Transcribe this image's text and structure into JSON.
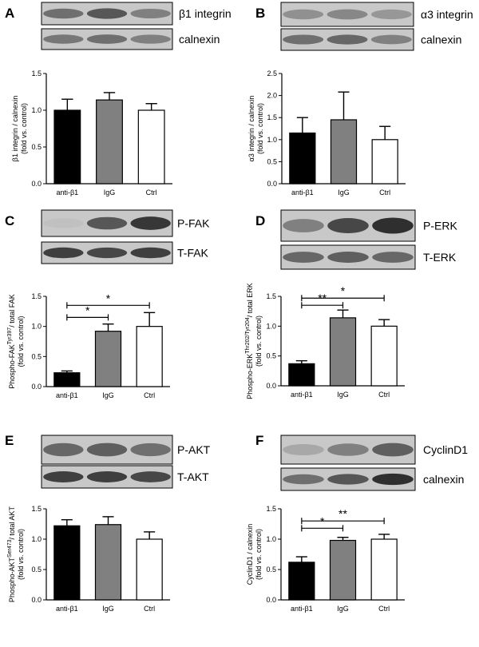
{
  "chart_data": [
    {
      "panel": "A",
      "type": "bar",
      "blots": [
        {
          "label": "β1 integrin",
          "intensity": [
            0.55,
            0.7,
            0.45
          ]
        },
        {
          "label": "calnexin",
          "intensity": [
            0.5,
            0.55,
            0.45
          ]
        }
      ],
      "categories": [
        "anti-β1",
        "IgG",
        "Ctrl"
      ],
      "values": [
        1.0,
        1.14,
        1.0
      ],
      "errors": [
        0.15,
        0.1,
        0.09
      ],
      "bar_colors": [
        "#000000",
        "#808080",
        "#ffffff"
      ],
      "ylabel_lines": [
        "β1 integrin / calnexin",
        "(fold vs. control)"
      ],
      "ylim": [
        0,
        1.5
      ],
      "yticks": [
        "0.0",
        "0.5",
        "1.0",
        "1.5"
      ],
      "significance": []
    },
    {
      "panel": "B",
      "type": "bar",
      "blots": [
        {
          "label": "α3 integrin",
          "intensity": [
            0.35,
            0.4,
            0.3
          ]
        },
        {
          "label": "calnexin",
          "intensity": [
            0.55,
            0.6,
            0.45
          ]
        }
      ],
      "categories": [
        "anti-β1",
        "IgG",
        "Ctrl"
      ],
      "values": [
        1.15,
        1.45,
        1.0
      ],
      "errors": [
        0.35,
        0.63,
        0.3
      ],
      "bar_colors": [
        "#000000",
        "#808080",
        "#ffffff"
      ],
      "ylabel_lines": [
        "α3 integrin / calnexin",
        "(fold vs. control)"
      ],
      "ylim": [
        0,
        2.5
      ],
      "yticks": [
        "0.0",
        "0.5",
        "1.0",
        "1.5",
        "2.0",
        "2.5"
      ],
      "significance": []
    },
    {
      "panel": "C",
      "type": "bar",
      "blots": [
        {
          "label": "P-FAK",
          "intensity": [
            0.05,
            0.7,
            0.9
          ]
        },
        {
          "label": "T-FAK",
          "intensity": [
            0.85,
            0.8,
            0.85
          ]
        }
      ],
      "categories": [
        "anti-β1",
        "IgG",
        "Ctrl"
      ],
      "values": [
        0.23,
        0.92,
        1.0
      ],
      "errors": [
        0.03,
        0.12,
        0.23
      ],
      "bar_colors": [
        "#000000",
        "#808080",
        "#ffffff"
      ],
      "ylabel_lines": [
        "Phospho-FAK",
        "Tyr397",
        "/ total FAK",
        "(fold vs. control)"
      ],
      "ylim": [
        0,
        1.5
      ],
      "yticks": [
        "0.0",
        "0.5",
        "1.0",
        "1.5"
      ],
      "significance": [
        {
          "from": 0,
          "to": 1,
          "label": "*",
          "y": 1.15
        },
        {
          "from": 0,
          "to": 2,
          "label": "*",
          "y": 1.35
        }
      ]
    },
    {
      "panel": "D",
      "type": "bar",
      "blots": [
        {
          "label": "P-ERK",
          "intensity": [
            0.45,
            0.8,
            0.95
          ]
        },
        {
          "label": "T-ERK",
          "intensity": [
            0.6,
            0.65,
            0.6
          ]
        }
      ],
      "categories": [
        "anti-β1",
        "IgG",
        "Ctrl"
      ],
      "values": [
        0.37,
        1.14,
        1.0
      ],
      "errors": [
        0.05,
        0.13,
        0.11
      ],
      "bar_colors": [
        "#000000",
        "#808080",
        "#ffffff"
      ],
      "ylabel_lines": [
        "Phospho-ERK",
        "Thr202/Tyr204",
        "/ total ERK",
        "(fold vs. control)"
      ],
      "ylim": [
        0,
        1.5
      ],
      "yticks": [
        "0.0",
        "0.5",
        "1.0",
        "1.5"
      ],
      "significance": [
        {
          "from": 0,
          "to": 1,
          "label": "**",
          "y": 1.35
        },
        {
          "from": 0,
          "to": 2,
          "label": "*",
          "y": 1.47
        }
      ]
    },
    {
      "panel": "E",
      "type": "bar",
      "blots": [
        {
          "label": "P-AKT",
          "intensity": [
            0.6,
            0.65,
            0.55
          ]
        },
        {
          "label": "T-AKT",
          "intensity": [
            0.85,
            0.85,
            0.8
          ]
        }
      ],
      "categories": [
        "anti-β1",
        "IgG",
        "Ctrl"
      ],
      "values": [
        1.22,
        1.24,
        1.0
      ],
      "errors": [
        0.1,
        0.13,
        0.12
      ],
      "bar_colors": [
        "#000000",
        "#808080",
        "#ffffff"
      ],
      "ylabel_lines": [
        "Phospho-AKT",
        "Ser473",
        "/ total AKT",
        "(fold vs. control)"
      ],
      "ylim": [
        0,
        1.5
      ],
      "yticks": [
        "0.0",
        "0.5",
        "1.0",
        "1.5"
      ],
      "significance": []
    },
    {
      "panel": "F",
      "type": "bar",
      "blots": [
        {
          "label": "CyclinD1",
          "intensity": [
            0.2,
            0.45,
            0.65
          ]
        },
        {
          "label": "calnexin",
          "intensity": [
            0.55,
            0.7,
            0.95
          ]
        }
      ],
      "categories": [
        "anti-β1",
        "IgG",
        "Ctrl"
      ],
      "values": [
        0.62,
        0.98,
        1.0
      ],
      "errors": [
        0.09,
        0.05,
        0.08
      ],
      "bar_colors": [
        "#000000",
        "#808080",
        "#ffffff"
      ],
      "ylabel_lines": [
        "CyclinD1 / calnexin",
        "(fold vs. control)"
      ],
      "ylim": [
        0,
        1.5
      ],
      "yticks": [
        "0.0",
        "0.5",
        "1.0",
        "1.5"
      ],
      "significance": [
        {
          "from": 0,
          "to": 1,
          "label": "*",
          "y": 1.18
        },
        {
          "from": 0,
          "to": 2,
          "label": "**",
          "y": 1.3
        }
      ]
    }
  ]
}
